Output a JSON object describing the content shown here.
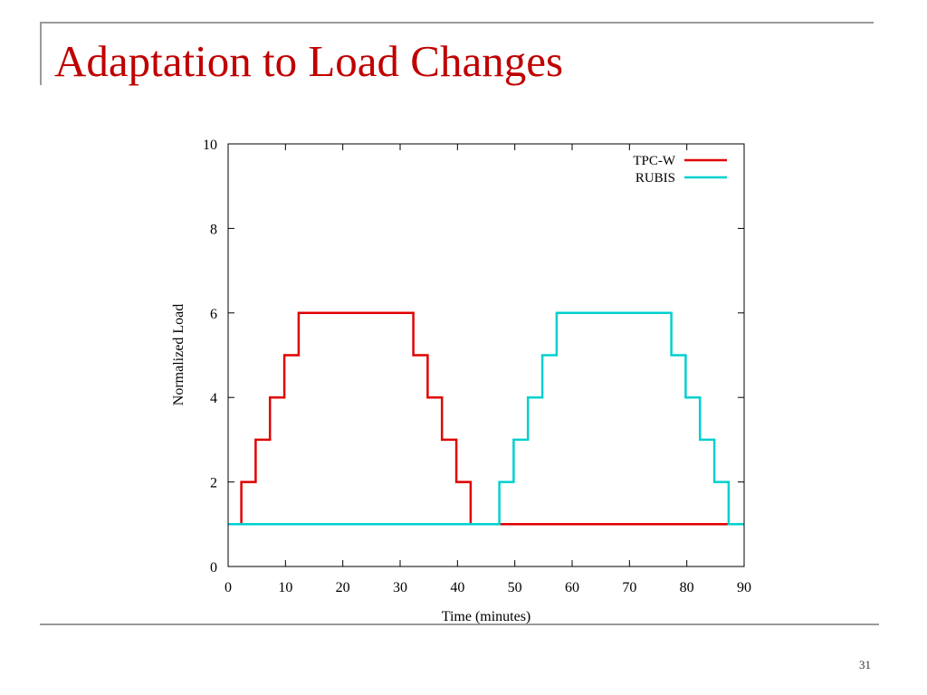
{
  "slide": {
    "title": "Adaptation to Load Changes",
    "page_number": "31",
    "title_color": "#c00000"
  },
  "chart_data": {
    "type": "line",
    "title": "",
    "xlabel": "Time (minutes)",
    "ylabel": "Normalized Load",
    "xlim": [
      0,
      90
    ],
    "ylim": [
      0,
      10
    ],
    "x_ticks": [
      0,
      10,
      20,
      30,
      40,
      50,
      60,
      70,
      80,
      90
    ],
    "y_ticks": [
      0,
      2,
      4,
      6,
      8,
      10
    ],
    "grid": false,
    "legend_position": "top-right",
    "series": [
      {
        "name": "TPC-W",
        "color": "#e00000",
        "style": "step",
        "points": [
          [
            2.3,
            1
          ],
          [
            2.3,
            2
          ],
          [
            4.8,
            2
          ],
          [
            4.8,
            3
          ],
          [
            7.3,
            3
          ],
          [
            7.3,
            4
          ],
          [
            9.8,
            4
          ],
          [
            9.8,
            5
          ],
          [
            12.3,
            5
          ],
          [
            12.3,
            6
          ],
          [
            32.3,
            6
          ],
          [
            32.3,
            5
          ],
          [
            34.8,
            5
          ],
          [
            34.8,
            4
          ],
          [
            37.3,
            4
          ],
          [
            37.3,
            3
          ],
          [
            39.8,
            3
          ],
          [
            39.8,
            2
          ],
          [
            42.3,
            2
          ],
          [
            42.3,
            1
          ],
          [
            47.5,
            1
          ],
          [
            87.5,
            1
          ]
        ]
      },
      {
        "name": "RUBIS",
        "color": "#00d0d0",
        "style": "step",
        "points": [
          [
            0,
            1
          ],
          [
            47.3,
            1
          ],
          [
            47.3,
            2
          ],
          [
            49.8,
            2
          ],
          [
            49.8,
            3
          ],
          [
            52.3,
            3
          ],
          [
            52.3,
            4
          ],
          [
            54.8,
            4
          ],
          [
            54.8,
            5
          ],
          [
            57.3,
            5
          ],
          [
            57.3,
            6
          ],
          [
            77.3,
            6
          ],
          [
            77.3,
            5
          ],
          [
            79.8,
            5
          ],
          [
            79.8,
            4
          ],
          [
            82.3,
            4
          ],
          [
            82.3,
            3
          ],
          [
            84.8,
            3
          ],
          [
            84.8,
            2
          ],
          [
            87.3,
            2
          ],
          [
            87.3,
            1
          ],
          [
            90,
            1
          ]
        ]
      }
    ]
  }
}
